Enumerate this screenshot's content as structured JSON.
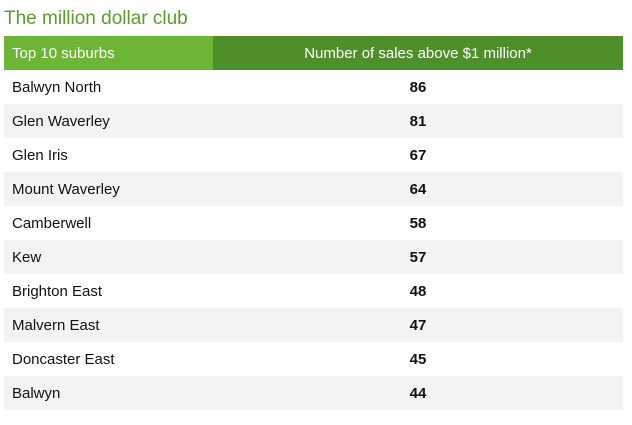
{
  "title": "The million dollar club",
  "table": {
    "headers": [
      "Top 10 suburbs",
      "Number of sales above $1 million*"
    ],
    "rows": [
      {
        "suburb": "Balwyn North",
        "sales": "86"
      },
      {
        "suburb": "Glen Waverley",
        "sales": "81"
      },
      {
        "suburb": "Glen Iris",
        "sales": "67"
      },
      {
        "suburb": "Mount Waverley",
        "sales": "64"
      },
      {
        "suburb": "Camberwell",
        "sales": "58"
      },
      {
        "suburb": "Kew",
        "sales": "57"
      },
      {
        "suburb": "Brighton East",
        "sales": "48"
      },
      {
        "suburb": "Malvern East",
        "sales": "47"
      },
      {
        "suburb": "Doncaster East",
        "sales": "45"
      },
      {
        "suburb": "Balwyn",
        "sales": "44"
      }
    ]
  },
  "colors": {
    "title": "#5a9d28",
    "header_left": "#6db535",
    "header_right": "#4f8f2a",
    "row_alt": "#f3f3f3"
  }
}
